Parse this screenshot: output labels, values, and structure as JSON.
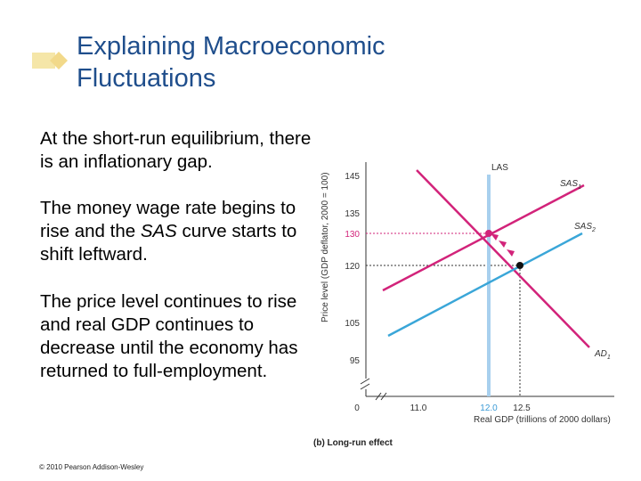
{
  "slide": {
    "title_lines": [
      "Explaining Macroeconomic",
      "Fluctuations"
    ],
    "bullets": [
      "At the short-run equilibrium, there is an inflationary gap.",
      {
        "before": "The money wage rate begins to rise and the ",
        "em": "SAS",
        "after": " curve starts to shift leftward."
      },
      "The price level continues to rise and real GDP continues to decrease until the economy has returned to full-employment."
    ],
    "copyright": "© 2010 Pearson Addison-Wesley",
    "accent_color": "#f5e6a8",
    "title_color": "#1f4e8c"
  },
  "chart": {
    "y_axis_label": "Price level (GDP deflator, 2000 = 100)",
    "x_axis_label": "Real GDP (trillions of 2000 dollars)",
    "caption": "(b) Long-run effect",
    "y_ticks": [
      "145",
      "135",
      "130",
      "120",
      "105",
      "95"
    ],
    "x_ticks": [
      "0",
      "11.0",
      "12.0",
      "12.5"
    ],
    "curve_labels": {
      "las": "LAS",
      "sas1": "SAS",
      "sas1_sub": "1",
      "sas2": "SAS",
      "sas2_sub": "2",
      "ad": "AD",
      "ad_sub": "1"
    },
    "colors": {
      "las": "#a8d0ee",
      "sas1": "#d2237a",
      "sas2": "#3aa6d8",
      "ad": "#d2237a"
    }
  }
}
